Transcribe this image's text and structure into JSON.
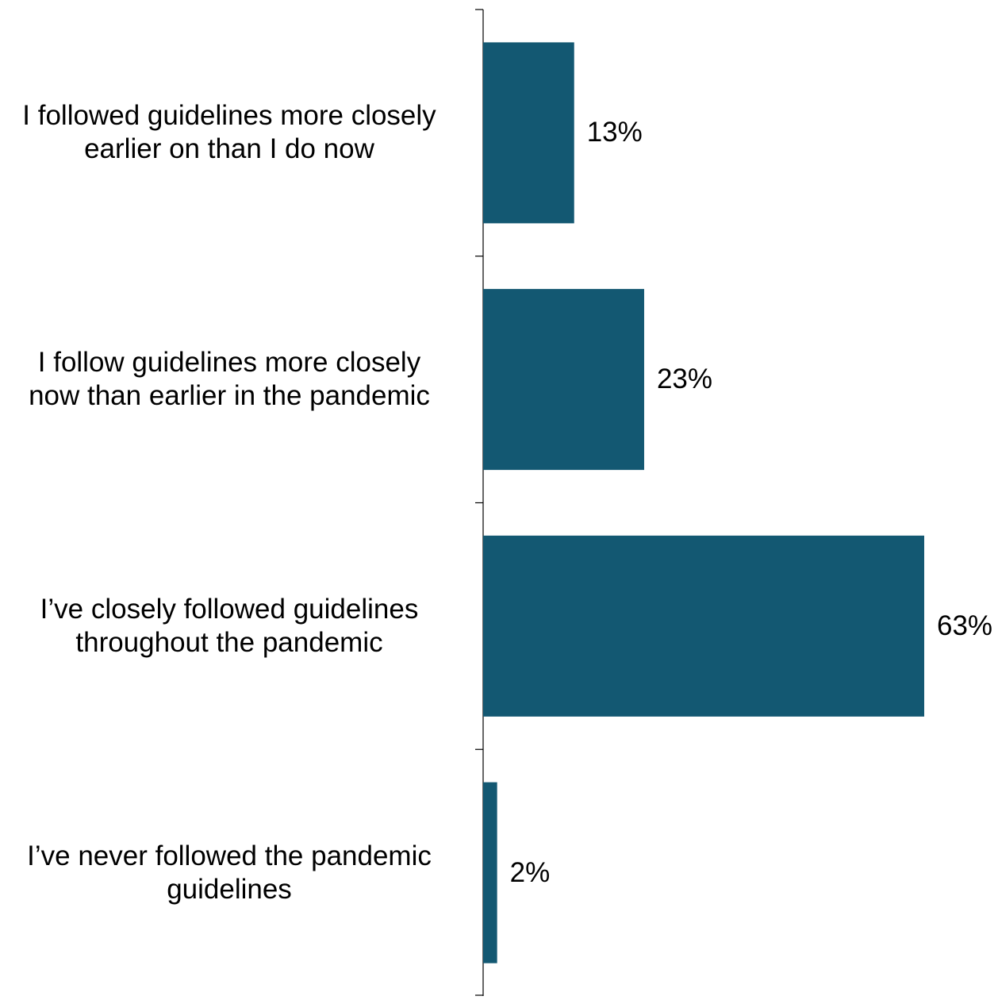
{
  "chart_data": {
    "type": "bar",
    "orientation": "horizontal",
    "categories": [
      [
        "I followed guidelines more closely",
        "earlier on than I do now"
      ],
      [
        "I follow guidelines more closely",
        "now than earlier in the pandemic"
      ],
      [
        "I’ve closely followed guidelines",
        "throughout the pandemic"
      ],
      [
        "I’ve never followed the pandemic",
        "guidelines"
      ]
    ],
    "values": [
      13,
      23,
      63,
      2
    ],
    "value_labels": [
      "13%",
      "23%",
      "63%",
      "2%"
    ],
    "xlim": [
      0,
      63
    ],
    "bar_color": "#135872",
    "axis_color": "#000000"
  }
}
